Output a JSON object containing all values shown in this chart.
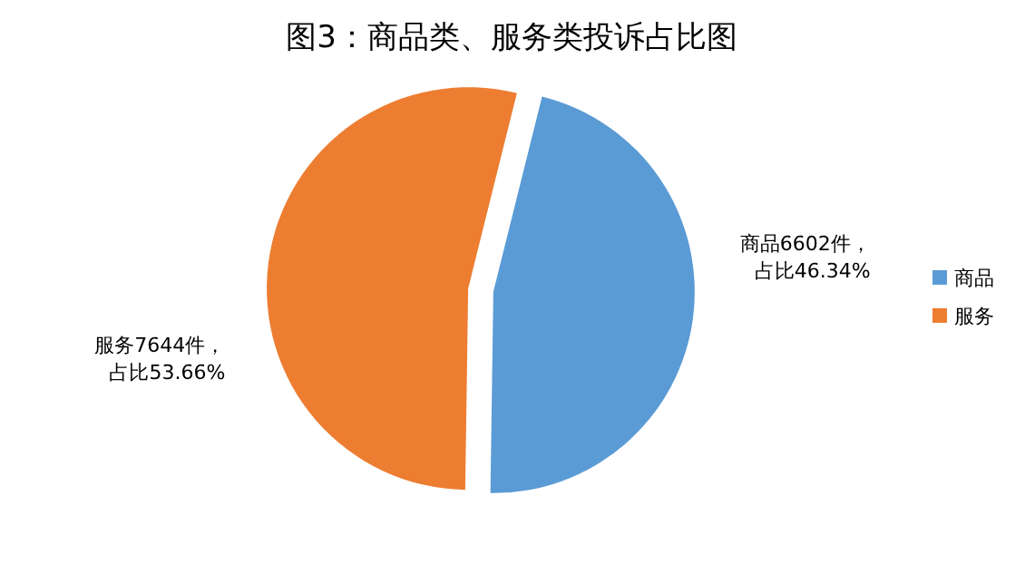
{
  "chart_data": {
    "type": "pie",
    "title": "图3：商品类、服务类投诉占比图",
    "categories": [
      "商品",
      "服务"
    ],
    "values": [
      6602,
      7644
    ],
    "colors": [
      "#5b9bd5",
      "#ed7d31"
    ],
    "value_labels": [
      "商品6602件，占比46.34%",
      "服务7644件，占比53.66%"
    ],
    "legend": "right"
  }
}
